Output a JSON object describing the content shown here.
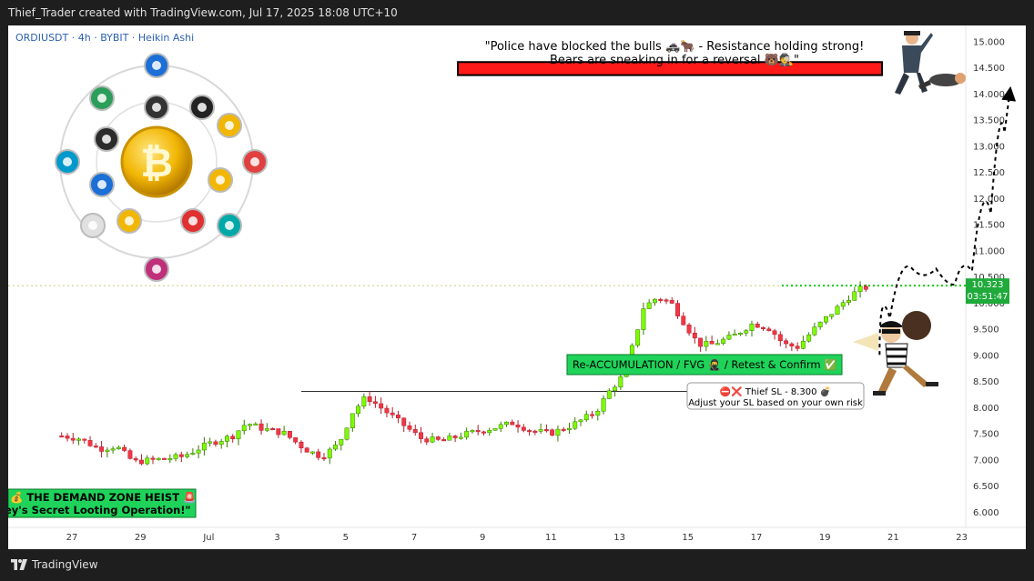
{
  "header": {
    "attribution": "Thief_Trader created with TradingView.com, Jul 17, 2025 18:08 UTC+10"
  },
  "footer": {
    "brand": "TradingView"
  },
  "colors": {
    "up": "#7cfc00",
    "down": "#f23645",
    "level": "#00cc00",
    "price_label": "#1faa3b"
  },
  "chart_data": {
    "type": "candlestick",
    "symbol_line": "ORDIUSDT · 4h · BYBIT · Heikin Ashi",
    "ylim": [
      5.7,
      15.3
    ],
    "y_ticks": [
      "6.000",
      "6.500",
      "7.000",
      "7.500",
      "8.000",
      "8.500",
      "9.000",
      "9.500",
      "10.000",
      "10.500",
      "11.000",
      "11.500",
      "12.000",
      "12.500",
      "13.000",
      "13.500",
      "14.000",
      "14.500",
      "15.000"
    ],
    "x_ticks": [
      "27",
      "29",
      "Jul",
      "3",
      "5",
      "7",
      "9",
      "11",
      "13",
      "15",
      "17",
      "19",
      "21",
      "23"
    ],
    "last_price": {
      "value": "10.323",
      "countdown": "03:51:47"
    },
    "price_path": [
      {
        "x": -0.3,
        "y": 7.45
      },
      {
        "x": 0.2,
        "y": 7.4
      },
      {
        "x": 0.8,
        "y": 7.2
      },
      {
        "x": 1.3,
        "y": 7.25
      },
      {
        "x": 1.8,
        "y": 6.95
      },
      {
        "x": 2.5,
        "y": 7.0
      },
      {
        "x": 3.2,
        "y": 7.05
      },
      {
        "x": 4.0,
        "y": 7.3
      },
      {
        "x": 4.7,
        "y": 7.45
      },
      {
        "x": 5.1,
        "y": 7.7
      },
      {
        "x": 5.5,
        "y": 7.6
      },
      {
        "x": 6.2,
        "y": 7.5
      },
      {
        "x": 6.8,
        "y": 7.2
      },
      {
        "x": 7.3,
        "y": 7.05
      },
      {
        "x": 7.8,
        "y": 7.3
      },
      {
        "x": 8.2,
        "y": 7.9
      },
      {
        "x": 8.6,
        "y": 8.2
      },
      {
        "x": 9.2,
        "y": 7.9
      },
      {
        "x": 9.8,
        "y": 7.6
      },
      {
        "x": 10.2,
        "y": 7.4
      },
      {
        "x": 10.8,
        "y": 7.35
      },
      {
        "x": 11.6,
        "y": 7.5
      },
      {
        "x": 12.3,
        "y": 7.6
      },
      {
        "x": 12.9,
        "y": 7.7
      },
      {
        "x": 13.4,
        "y": 7.55
      },
      {
        "x": 14.0,
        "y": 7.5
      },
      {
        "x": 14.6,
        "y": 7.65
      },
      {
        "x": 15.3,
        "y": 7.9
      },
      {
        "x": 15.7,
        "y": 8.3
      },
      {
        "x": 16.1,
        "y": 8.6
      },
      {
        "x": 16.4,
        "y": 9.2
      },
      {
        "x": 16.7,
        "y": 9.9
      },
      {
        "x": 17.1,
        "y": 10.1
      },
      {
        "x": 17.5,
        "y": 10.0
      },
      {
        "x": 17.9,
        "y": 9.6
      },
      {
        "x": 18.3,
        "y": 9.2
      },
      {
        "x": 18.7,
        "y": 9.2
      },
      {
        "x": 19.3,
        "y": 9.35
      },
      {
        "x": 19.9,
        "y": 9.6
      },
      {
        "x": 20.4,
        "y": 9.5
      },
      {
        "x": 20.8,
        "y": 9.2
      },
      {
        "x": 21.2,
        "y": 9.15
      },
      {
        "x": 21.7,
        "y": 9.5
      },
      {
        "x": 22.2,
        "y": 9.8
      },
      {
        "x": 22.7,
        "y": 10.1
      },
      {
        "x": 23.0,
        "y": 10.25
      },
      {
        "x": 23.3,
        "y": 10.3
      }
    ],
    "levels": {
      "dotted_price": 10.323,
      "resistance_zone": [
        14.35,
        14.6
      ],
      "sl_line": 8.3
    },
    "projection": [
      {
        "x": 23.6,
        "y": 9.0
      },
      {
        "x": 24.2,
        "y": 10.4
      },
      {
        "x": 24.9,
        "y": 10.9
      },
      {
        "x": 25.6,
        "y": 10.4
      },
      {
        "x": 26.0,
        "y": 10.3
      },
      {
        "x": 26.6,
        "y": 10.9
      },
      {
        "x": 27.1,
        "y": 12.5
      },
      {
        "x": 27.4,
        "y": 14.0
      }
    ],
    "x_tick_positions": [
      0,
      2,
      4,
      6,
      8,
      10,
      12,
      14,
      16,
      18,
      20,
      22,
      24,
      26
    ],
    "annotations": {
      "headline_1": "\"Police have blocked the bulls 🚓🐂 - Resistance holding strong!",
      "headline_2": "Bears are sneaking in for a reversal 🐻🕵️\"",
      "zone_label": "Re-ACCUMULATION / FVG 🥷 / Retest & Confirm ✅",
      "sl_line_1": "⛔❌ Thief SL - 8.300 💣",
      "sl_line_2": "Adjust your SL based on your own risk",
      "heist_1": "💰 THE DEMAND ZONE HEIST 🚨",
      "heist_2": "ey's Secret Looting Operation!\""
    }
  }
}
